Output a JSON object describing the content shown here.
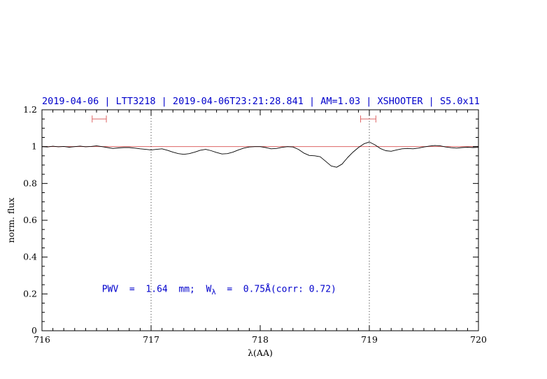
{
  "chart_data": {
    "type": "line",
    "title": "2019-04-06 | LTT3218 | 2019-04-06T23:21:28.841 | AM=1.03 | XSHOOTER | S5.0x11",
    "title_color": "#0000cc",
    "xlabel": "λ(AA)",
    "ylabel": "norm. flux",
    "xlim": [
      716,
      720
    ],
    "ylim": [
      0,
      1.2
    ],
    "x_ticks": [
      716,
      717,
      718,
      719,
      720
    ],
    "x_tick_labels": [
      "716",
      "717",
      "718",
      "719",
      "720"
    ],
    "y_ticks": [
      0,
      0.2,
      0.4,
      0.6,
      0.8,
      1,
      1.2
    ],
    "y_tick_labels": [
      "0",
      "0.2",
      "0.4",
      "0.6",
      "0.8",
      "1",
      "1.2"
    ],
    "grid": false,
    "legend": "none",
    "reference_line": {
      "y": 1.0,
      "color": "#dd6666"
    },
    "vertical_dotted_lines": [
      717,
      719
    ],
    "marker_color": "#dd6666",
    "interval_markers": [
      {
        "x1": 716.46,
        "x2": 716.59,
        "y": 1.15
      },
      {
        "x1": 718.92,
        "x2": 719.06,
        "y": 1.15
      }
    ],
    "annotation": {
      "x": 716.55,
      "y": 0.21,
      "color": "#0000cc",
      "text_plain": "PWV = 1.64 mm; Wλ = 0.75Å(corr: 0.72)",
      "segments": [
        {
          "t": "PWV  =  1.64  mm;  W",
          "style": "normal"
        },
        {
          "t": "λ",
          "style": "sub"
        },
        {
          "t": "  =  0.75Å(corr: 0.72)",
          "style": "normal"
        }
      ]
    },
    "series": [
      {
        "name": "spectrum",
        "color": "#000000",
        "x": [
          716,
          716.05,
          716.1,
          716.15,
          716.2,
          716.25,
          716.3,
          716.35,
          716.4,
          716.45,
          716.5,
          716.55,
          716.6,
          716.65,
          716.7,
          716.75,
          716.8,
          716.85,
          716.9,
          716.95,
          717,
          717.05,
          717.1,
          717.15,
          717.2,
          717.25,
          717.3,
          717.35,
          717.4,
          717.45,
          717.5,
          717.55,
          717.6,
          717.65,
          717.7,
          717.75,
          717.8,
          717.85,
          717.9,
          717.95,
          718,
          718.05,
          718.1,
          718.15,
          718.2,
          718.25,
          718.3,
          718.35,
          718.4,
          718.45,
          718.5,
          718.55,
          718.6,
          718.65,
          718.7,
          718.75,
          718.8,
          718.85,
          718.9,
          718.95,
          719,
          719.05,
          719.1,
          719.15,
          719.2,
          719.25,
          719.3,
          719.35,
          719.4,
          719.45,
          719.5,
          719.55,
          719.6,
          719.65,
          719.7,
          719.75,
          719.8,
          719.85,
          719.9,
          719.95,
          720
        ],
        "y": [
          1.0,
          0.998,
          1.002,
          0.999,
          1.001,
          0.997,
          1.0,
          1.003,
          0.999,
          1.001,
          1.004,
          1.0,
          0.995,
          0.99,
          0.993,
          0.995,
          0.995,
          0.992,
          0.988,
          0.985,
          0.982,
          0.985,
          0.988,
          0.98,
          0.97,
          0.962,
          0.958,
          0.962,
          0.97,
          0.98,
          0.985,
          0.978,
          0.968,
          0.96,
          0.962,
          0.97,
          0.982,
          0.992,
          0.998,
          1.0,
          1.0,
          0.995,
          0.988,
          0.99,
          0.996,
          1.0,
          0.998,
          0.985,
          0.965,
          0.952,
          0.95,
          0.945,
          0.92,
          0.895,
          0.888,
          0.905,
          0.94,
          0.97,
          0.995,
          1.015,
          1.025,
          1.01,
          0.99,
          0.978,
          0.975,
          0.982,
          0.988,
          0.99,
          0.988,
          0.992,
          0.998,
          1.003,
          1.006,
          1.004,
          0.998,
          0.994,
          0.992,
          0.995,
          0.997,
          0.995,
          0.996
        ]
      }
    ]
  }
}
